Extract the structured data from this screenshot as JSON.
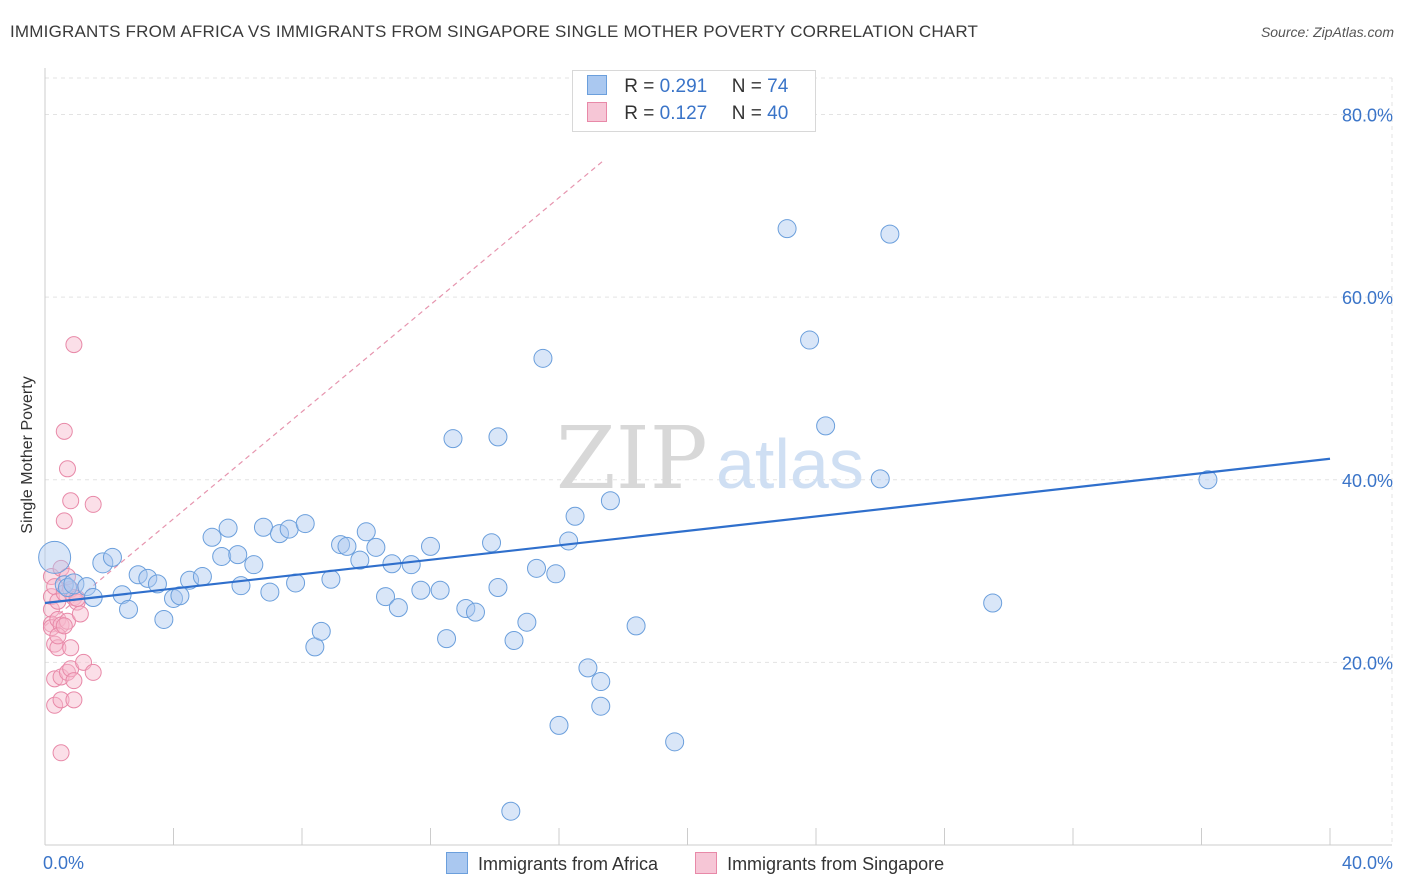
{
  "title": "IMMIGRANTS FROM AFRICA VS IMMIGRANTS FROM SINGAPORE SINGLE MOTHER POVERTY CORRELATION CHART",
  "source": "Source: ZipAtlas.com",
  "watermark": {
    "zip": "ZIP",
    "atlas": "atlas"
  },
  "colors": {
    "africa_fill": "#aac8f0",
    "africa_stroke": "#6b9fdc",
    "africa_line": "#2f6fcc",
    "singapore_fill": "#f6b8cc",
    "singapore_stroke": "#e889a8",
    "singapore_line": "#e07a9a",
    "axis_text": "#3a74c8",
    "grid": "#e3e3e3"
  },
  "legend": {
    "africa": {
      "r_label": "R =",
      "r_value": "0.291",
      "n_label": "N =",
      "n_value": "74"
    },
    "singapore": {
      "r_label": "R =",
      "r_value": "0.127",
      "n_label": "N =",
      "n_value": "40"
    }
  },
  "chart_data": {
    "type": "scatter",
    "title": "IMMIGRANTS FROM AFRICA VS IMMIGRANTS FROM SINGAPORE SINGLE MOTHER POVERTY CORRELATION CHART",
    "xlabel": "",
    "ylabel": "Single Mother Poverty",
    "xlim": [
      0,
      40
    ],
    "ylim": [
      0,
      84
    ],
    "x_tick_labels": [
      "0.0%",
      "40.0%"
    ],
    "y_ticks": [
      20,
      40,
      60,
      80
    ],
    "y_tick_labels": [
      "20.0%",
      "40.0%",
      "60.0%",
      "80.0%"
    ],
    "series": [
      {
        "name": "Immigrants from Africa",
        "points": [
          [
            0.3,
            31.5
          ],
          [
            0.6,
            28.5
          ],
          [
            0.7,
            28.2
          ],
          [
            0.9,
            28.6
          ],
          [
            1.3,
            28.3
          ],
          [
            1.5,
            27.1
          ],
          [
            1.8,
            30.9
          ],
          [
            2.1,
            31.5
          ],
          [
            2.4,
            27.4
          ],
          [
            2.6,
            25.8
          ],
          [
            2.9,
            29.6
          ],
          [
            3.2,
            29.2
          ],
          [
            3.5,
            28.6
          ],
          [
            3.7,
            24.7
          ],
          [
            4.0,
            27.0
          ],
          [
            4.2,
            27.3
          ],
          [
            4.5,
            29.0
          ],
          [
            4.9,
            29.4
          ],
          [
            5.2,
            33.7
          ],
          [
            5.5,
            31.6
          ],
          [
            5.7,
            34.7
          ],
          [
            6.0,
            31.8
          ],
          [
            6.1,
            28.4
          ],
          [
            6.5,
            30.7
          ],
          [
            6.8,
            34.8
          ],
          [
            7.0,
            27.7
          ],
          [
            7.3,
            34.1
          ],
          [
            7.6,
            34.6
          ],
          [
            7.8,
            28.7
          ],
          [
            8.1,
            35.2
          ],
          [
            8.4,
            21.7
          ],
          [
            8.6,
            23.4
          ],
          [
            8.9,
            29.1
          ],
          [
            9.2,
            32.9
          ],
          [
            9.4,
            32.7
          ],
          [
            9.8,
            31.2
          ],
          [
            10.0,
            34.3
          ],
          [
            10.3,
            32.6
          ],
          [
            10.6,
            27.2
          ],
          [
            10.8,
            30.8
          ],
          [
            11.0,
            26.0
          ],
          [
            11.4,
            30.7
          ],
          [
            11.7,
            27.9
          ],
          [
            12.0,
            32.7
          ],
          [
            12.3,
            27.9
          ],
          [
            12.5,
            22.6
          ],
          [
            12.7,
            44.5
          ],
          [
            13.1,
            25.9
          ],
          [
            13.4,
            25.5
          ],
          [
            13.9,
            33.1
          ],
          [
            14.1,
            28.2
          ],
          [
            14.1,
            44.7
          ],
          [
            14.6,
            22.4
          ],
          [
            15.0,
            24.4
          ],
          [
            15.3,
            30.3
          ],
          [
            15.5,
            53.3
          ],
          [
            15.9,
            29.7
          ],
          [
            16.0,
            13.1
          ],
          [
            16.3,
            33.3
          ],
          [
            16.5,
            36.0
          ],
          [
            16.9,
            19.4
          ],
          [
            17.3,
            17.9
          ],
          [
            17.3,
            15.2
          ],
          [
            17.6,
            37.7
          ],
          [
            18.4,
            24.0
          ],
          [
            19.6,
            11.3
          ],
          [
            23.1,
            67.5
          ],
          [
            23.8,
            55.3
          ],
          [
            24.3,
            45.9
          ],
          [
            26.0,
            40.1
          ],
          [
            26.3,
            66.9
          ],
          [
            29.5,
            26.5
          ],
          [
            36.2,
            40.0
          ],
          [
            14.5,
            3.7
          ]
        ],
        "trendline": {
          "x": [
            0,
            40
          ],
          "y": [
            26.5,
            42.3
          ]
        }
      },
      {
        "name": "Immigrants from Singapore",
        "points": [
          [
            0.2,
            29.4
          ],
          [
            0.2,
            27.2
          ],
          [
            0.2,
            25.8
          ],
          [
            0.2,
            24.2
          ],
          [
            0.2,
            23.8
          ],
          [
            0.3,
            28.3
          ],
          [
            0.3,
            22.0
          ],
          [
            0.3,
            18.2
          ],
          [
            0.3,
            15.3
          ],
          [
            0.4,
            26.7
          ],
          [
            0.4,
            24.7
          ],
          [
            0.4,
            21.6
          ],
          [
            0.5,
            30.3
          ],
          [
            0.5,
            24.1
          ],
          [
            0.5,
            18.4
          ],
          [
            0.5,
            15.9
          ],
          [
            0.5,
            10.1
          ],
          [
            0.6,
            45.3
          ],
          [
            0.6,
            35.5
          ],
          [
            0.6,
            27.6
          ],
          [
            0.7,
            41.2
          ],
          [
            0.7,
            24.5
          ],
          [
            0.7,
            18.9
          ],
          [
            0.8,
            37.7
          ],
          [
            0.8,
            28.0
          ],
          [
            0.8,
            21.6
          ],
          [
            0.8,
            19.3
          ],
          [
            0.9,
            54.8
          ],
          [
            0.9,
            27.1
          ],
          [
            0.9,
            18.0
          ],
          [
            0.9,
            15.9
          ],
          [
            1.0,
            26.6
          ],
          [
            1.1,
            25.3
          ],
          [
            1.2,
            20.0
          ],
          [
            1.5,
            37.3
          ],
          [
            1.5,
            18.9
          ],
          [
            0.4,
            22.9
          ],
          [
            0.6,
            24.0
          ],
          [
            1.0,
            27.0
          ],
          [
            0.7,
            29.4
          ]
        ],
        "trendline": {
          "x": [
            0,
            17.4
          ],
          "y": [
            24.0,
            75.0
          ]
        }
      }
    ]
  },
  "bottom_legend": {
    "africa_label": "Immigrants from Africa",
    "singapore_label": "Immigrants from Singapore"
  }
}
